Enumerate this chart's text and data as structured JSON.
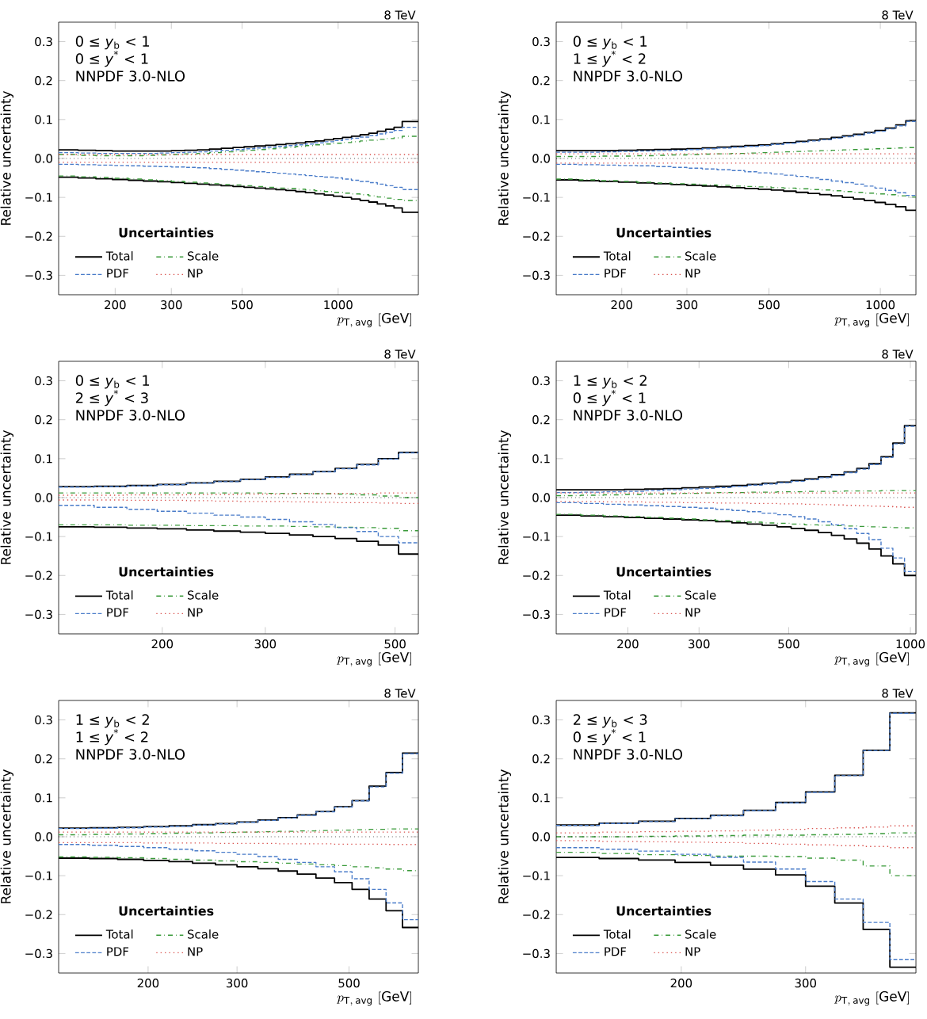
{
  "chart_data": [
    {
      "type": "step",
      "subtitle": "8 TeV",
      "xlabel": "p_{\\mathrm{T,\\,avg}}\\ \\mathrm{[GeV]}",
      "ylabel": "Relative uncertainty",
      "legend_title": "Uncertainties",
      "legend": "bottom left",
      "log": "x",
      "annotations": [
        "0 ≤ *y*$_{b}$ < 1",
        "0 ≤ *y*$^{*}$ < 1",
        "NNPDF 3.0-NLO"
      ],
      "x": [
        133,
        153,
        174,
        196,
        220,
        245,
        272,
        300,
        330,
        362,
        395,
        430,
        468,
        507,
        548,
        592,
        638,
        686,
        737,
        790,
        846,
        905,
        967,
        1032,
        1101,
        1172,
        1248,
        1327,
        1410,
        1497,
        1588,
        1784
      ],
      "xlim": [
        133,
        1784
      ],
      "xticks": [
        200,
        300,
        500,
        1000
      ],
      "ylim": [
        -0.35,
        0.35
      ],
      "yticks": [
        {
          "value": -0.3,
          "label": "−0.3"
        },
        {
          "value": -0.2,
          "label": "−0.2"
        },
        {
          "value": -0.1,
          "label": "−0.1"
        },
        {
          "value": 0,
          "label": "0.0"
        },
        0.1,
        0.2,
        0.3
      ],
      "ref_lines": [
        {
          "axis": "y",
          "value": 0,
          "color": "#000000",
          "line_style": "dotted"
        }
      ],
      "series": [
        {
          "name": "Total",
          "color": "#000000",
          "line_style": "solid",
          "values": [
            0.022,
            0.021,
            0.02,
            0.019,
            0.019,
            0.019,
            0.019,
            0.02,
            0.021,
            0.022,
            0.024,
            0.026,
            0.028,
            0.03,
            0.032,
            0.034,
            0.036,
            0.038,
            0.04,
            0.043,
            0.045,
            0.048,
            0.051,
            0.054,
            0.057,
            0.061,
            0.065,
            0.07,
            0.075,
            0.08,
            0.095,
            0.095
          ]
        },
        {
          "color": "#000000",
          "line_style": "solid",
          "values": [
            -0.048,
            -0.05,
            -0.052,
            -0.054,
            -0.056,
            -0.058,
            -0.06,
            -0.062,
            -0.064,
            -0.066,
            -0.068,
            -0.07,
            -0.072,
            -0.074,
            -0.076,
            -0.078,
            -0.08,
            -0.082,
            -0.085,
            -0.088,
            -0.091,
            -0.094,
            -0.097,
            -0.1,
            -0.104,
            -0.108,
            -0.112,
            -0.117,
            -0.122,
            -0.127,
            -0.138,
            -0.138
          ]
        },
        {
          "name": "Scale",
          "color": "#3a9a3a",
          "line_style": "dashdot",
          "values": [
            0.01,
            0.008,
            0.007,
            0.007,
            0.007,
            0.008,
            0.009,
            0.01,
            0.012,
            0.013,
            0.015,
            0.017,
            0.019,
            0.021,
            0.023,
            0.025,
            0.027,
            0.029,
            0.031,
            0.033,
            0.035,
            0.037,
            0.039,
            0.041,
            0.043,
            0.045,
            0.047,
            0.049,
            0.051,
            0.053,
            0.057,
            0.057
          ]
        },
        {
          "color": "#3a9a3a",
          "line_style": "dashdot",
          "values": [
            -0.045,
            -0.047,
            -0.049,
            -0.051,
            -0.053,
            -0.055,
            -0.057,
            -0.059,
            -0.061,
            -0.063,
            -0.065,
            -0.067,
            -0.068,
            -0.07,
            -0.072,
            -0.074,
            -0.076,
            -0.077,
            -0.079,
            -0.081,
            -0.083,
            -0.085,
            -0.087,
            -0.089,
            -0.091,
            -0.093,
            -0.096,
            -0.099,
            -0.102,
            -0.105,
            -0.108,
            -0.108
          ]
        },
        {
          "name": "PDF",
          "color": "#4a7cc9",
          "line_style": "dashed",
          "values": [
            0.015,
            0.014,
            0.013,
            0.013,
            0.013,
            0.013,
            0.014,
            0.015,
            0.016,
            0.017,
            0.019,
            0.021,
            0.023,
            0.025,
            0.027,
            0.029,
            0.031,
            0.033,
            0.035,
            0.037,
            0.04,
            0.043,
            0.046,
            0.049,
            0.052,
            0.055,
            0.059,
            0.063,
            0.067,
            0.072,
            0.08,
            0.08
          ]
        },
        {
          "color": "#4a7cc9",
          "line_style": "dashed",
          "values": [
            -0.015,
            -0.016,
            -0.017,
            -0.018,
            -0.019,
            -0.02,
            -0.021,
            -0.022,
            -0.023,
            -0.024,
            -0.026,
            -0.028,
            -0.03,
            -0.032,
            -0.034,
            -0.036,
            -0.038,
            -0.04,
            -0.042,
            -0.044,
            -0.046,
            -0.048,
            -0.05,
            -0.053,
            -0.056,
            -0.059,
            -0.062,
            -0.066,
            -0.07,
            -0.074,
            -0.08,
            -0.08
          ]
        },
        {
          "name": "NP",
          "color": "#d9534f",
          "line_style": "dotted",
          "values": [
            0.01,
            0.01,
            0.01,
            0.01,
            0.01,
            0.01,
            0.01,
            0.01,
            0.01,
            0.01,
            0.01,
            0.01,
            0.01,
            0.01,
            0.01,
            0.01,
            0.01,
            0.01,
            0.01,
            0.01,
            0.01,
            0.01,
            0.01,
            0.01,
            0.01,
            0.01,
            0.01,
            0.01,
            0.01,
            0.01,
            0.01,
            0.01
          ]
        },
        {
          "color": "#d9534f",
          "line_style": "dotted",
          "values": [
            -0.01,
            -0.01,
            -0.01,
            -0.01,
            -0.01,
            -0.01,
            -0.01,
            -0.01,
            -0.01,
            -0.01,
            -0.01,
            -0.01,
            -0.01,
            -0.01,
            -0.01,
            -0.01,
            -0.01,
            -0.01,
            -0.01,
            -0.01,
            -0.01,
            -0.01,
            -0.01,
            -0.01,
            -0.01,
            -0.01,
            -0.01,
            -0.01,
            -0.01,
            -0.01,
            -0.01,
            -0.01
          ]
        }
      ]
    },
    {
      "type": "step",
      "subtitle": "8 TeV",
      "xlabel": "p_{\\mathrm{T,\\,avg}}\\ \\mathrm{[GeV]}",
      "ylabel": "Relative uncertainty",
      "legend_title": "Uncertainties",
      "legend": "bottom left",
      "log": "x",
      "annotations": [
        "0 ≤ *y*$_{b}$ < 1",
        "1 ≤ *y*$^{*}$ < 2",
        "NNPDF 3.0-NLO"
      ],
      "x": [
        133,
        153,
        174,
        196,
        220,
        245,
        272,
        300,
        330,
        362,
        395,
        430,
        468,
        507,
        548,
        592,
        638,
        686,
        737,
        790,
        846,
        905,
        967,
        1032,
        1101,
        1172,
        1248
      ],
      "xlim": [
        133,
        1248
      ],
      "xticks": [
        200,
        300,
        500,
        1000
      ],
      "ylim": [
        -0.35,
        0.35
      ],
      "yticks": [
        {
          "value": -0.3,
          "label": "−0.3"
        },
        {
          "value": -0.2,
          "label": "−0.2"
        },
        {
          "value": -0.1,
          "label": "−0.1"
        },
        {
          "value": 0,
          "label": "0.0"
        },
        0.1,
        0.2,
        0.3
      ],
      "ref_lines": [
        {
          "axis": "y",
          "value": 0,
          "color": "#000000",
          "line_style": "dotted"
        }
      ],
      "series": [
        {
          "name": "Total",
          "color": "#000000",
          "line_style": "solid",
          "values": [
            0.02,
            0.02,
            0.02,
            0.021,
            0.022,
            0.023,
            0.024,
            0.025,
            0.027,
            0.029,
            0.031,
            0.033,
            0.035,
            0.038,
            0.041,
            0.044,
            0.047,
            0.05,
            0.054,
            0.058,
            0.062,
            0.067,
            0.072,
            0.078,
            0.086,
            0.097,
            0.097
          ]
        },
        {
          "color": "#000000",
          "line_style": "solid",
          "values": [
            -0.055,
            -0.057,
            -0.059,
            -0.061,
            -0.063,
            -0.065,
            -0.067,
            -0.069,
            -0.071,
            -0.073,
            -0.075,
            -0.077,
            -0.079,
            -0.081,
            -0.084,
            -0.087,
            -0.09,
            -0.093,
            -0.096,
            -0.1,
            -0.104,
            -0.108,
            -0.113,
            -0.118,
            -0.124,
            -0.133,
            -0.133
          ]
        },
        {
          "name": "Scale",
          "color": "#3a9a3a",
          "line_style": "dashdot",
          "values": [
            0.005,
            0.005,
            0.006,
            0.006,
            0.007,
            0.008,
            0.009,
            0.01,
            0.011,
            0.012,
            0.013,
            0.014,
            0.015,
            0.016,
            0.017,
            0.018,
            0.019,
            0.02,
            0.021,
            0.022,
            0.023,
            0.024,
            0.025,
            0.026,
            0.027,
            0.028,
            0.028
          ]
        },
        {
          "color": "#3a9a3a",
          "line_style": "dashdot",
          "values": [
            -0.053,
            -0.055,
            -0.057,
            -0.059,
            -0.061,
            -0.063,
            -0.065,
            -0.066,
            -0.068,
            -0.069,
            -0.071,
            -0.072,
            -0.073,
            -0.075,
            -0.076,
            -0.078,
            -0.08,
            -0.081,
            -0.083,
            -0.085,
            -0.087,
            -0.089,
            -0.091,
            -0.093,
            -0.096,
            -0.099,
            -0.099
          ]
        },
        {
          "name": "PDF",
          "color": "#4a7cc9",
          "line_style": "dashed",
          "values": [
            0.016,
            0.016,
            0.017,
            0.018,
            0.019,
            0.02,
            0.021,
            0.023,
            0.025,
            0.027,
            0.029,
            0.031,
            0.033,
            0.036,
            0.039,
            0.042,
            0.045,
            0.048,
            0.052,
            0.056,
            0.06,
            0.065,
            0.07,
            0.076,
            0.084,
            0.095,
            0.095
          ]
        },
        {
          "color": "#4a7cc9",
          "line_style": "dashed",
          "values": [
            -0.015,
            -0.016,
            -0.017,
            -0.018,
            -0.019,
            -0.021,
            -0.023,
            -0.025,
            -0.027,
            -0.029,
            -0.031,
            -0.034,
            -0.037,
            -0.04,
            -0.043,
            -0.046,
            -0.05,
            -0.054,
            -0.058,
            -0.062,
            -0.066,
            -0.071,
            -0.076,
            -0.082,
            -0.088,
            -0.095,
            -0.095
          ]
        },
        {
          "name": "NP",
          "color": "#d9534f",
          "line_style": "dotted",
          "values": [
            0.012,
            0.012,
            0.012,
            0.012,
            0.012,
            0.012,
            0.012,
            0.012,
            0.012,
            0.012,
            0.012,
            0.012,
            0.012,
            0.012,
            0.012,
            0.012,
            0.012,
            0.012,
            0.012,
            0.012,
            0.012,
            0.012,
            0.012,
            0.012,
            0.012,
            0.012,
            0.012
          ]
        },
        {
          "color": "#d9534f",
          "line_style": "dotted",
          "values": [
            -0.012,
            -0.012,
            -0.012,
            -0.012,
            -0.012,
            -0.012,
            -0.012,
            -0.012,
            -0.012,
            -0.012,
            -0.012,
            -0.012,
            -0.012,
            -0.012,
            -0.012,
            -0.012,
            -0.012,
            -0.012,
            -0.012,
            -0.012,
            -0.012,
            -0.012,
            -0.012,
            -0.012,
            -0.012,
            -0.012,
            -0.012
          ]
        }
      ]
    },
    {
      "type": "step",
      "subtitle": "8 TeV",
      "xlabel": "p_{\\mathrm{T,\\,avg}}\\ \\mathrm{[GeV]}",
      "ylabel": "Relative uncertainty",
      "legend_title": "Uncertainties",
      "legend": "bottom left",
      "log": "x",
      "annotations": [
        "0 ≤ *y*$_{b}$ < 1",
        "2 ≤ *y*$^{*}$ < 3",
        "NNPDF 3.0-NLO"
      ],
      "x": [
        133,
        153,
        174,
        196,
        220,
        245,
        272,
        300,
        330,
        362,
        395,
        430,
        468,
        507,
        548
      ],
      "xlim": [
        133,
        548
      ],
      "xticks": [
        200,
        300,
        500
      ],
      "ylim": [
        -0.35,
        0.35
      ],
      "yticks": [
        {
          "value": -0.3,
          "label": "−0.3"
        },
        {
          "value": -0.2,
          "label": "−0.2"
        },
        {
          "value": -0.1,
          "label": "−0.1"
        },
        {
          "value": 0,
          "label": "0.0"
        },
        0.1,
        0.2,
        0.3
      ],
      "ref_lines": [
        {
          "axis": "y",
          "value": 0,
          "color": "#000000",
          "line_style": "dotted"
        }
      ],
      "series": [
        {
          "name": "Total",
          "color": "#000000",
          "line_style": "solid",
          "values": [
            0.028,
            0.029,
            0.031,
            0.034,
            0.038,
            0.042,
            0.047,
            0.053,
            0.06,
            0.067,
            0.075,
            0.085,
            0.1,
            0.116,
            0.116
          ]
        },
        {
          "color": "#000000",
          "line_style": "solid",
          "values": [
            -0.075,
            -0.076,
            -0.078,
            -0.08,
            -0.083,
            -0.086,
            -0.089,
            -0.092,
            -0.096,
            -0.1,
            -0.105,
            -0.112,
            -0.122,
            -0.145,
            -0.145
          ]
        },
        {
          "name": "Scale",
          "color": "#3a9a3a",
          "line_style": "dashdot",
          "values": [
            0.012,
            0.012,
            0.012,
            0.012,
            0.012,
            0.012,
            0.012,
            0.011,
            0.011,
            0.01,
            0.009,
            0.007,
            0.004,
            0.0,
            0.0
          ]
        },
        {
          "color": "#3a9a3a",
          "line_style": "dashdot",
          "values": [
            -0.07,
            -0.07,
            -0.071,
            -0.071,
            -0.072,
            -0.072,
            -0.073,
            -0.073,
            -0.074,
            -0.075,
            -0.076,
            -0.077,
            -0.079,
            -0.085,
            -0.085
          ]
        },
        {
          "name": "PDF",
          "color": "#4a7cc9",
          "line_style": "dashed",
          "values": [
            0.027,
            0.028,
            0.03,
            0.033,
            0.037,
            0.041,
            0.046,
            0.052,
            0.059,
            0.066,
            0.074,
            0.084,
            0.099,
            0.115,
            0.115
          ]
        },
        {
          "color": "#4a7cc9",
          "line_style": "dashed",
          "values": [
            -0.02,
            -0.025,
            -0.03,
            -0.035,
            -0.04,
            -0.045,
            -0.05,
            -0.056,
            -0.062,
            -0.069,
            -0.077,
            -0.087,
            -0.1,
            -0.116,
            -0.116
          ]
        },
        {
          "name": "NP",
          "color": "#d9534f",
          "line_style": "dotted",
          "values": [
            0.006,
            0.006,
            0.007,
            0.007,
            0.008,
            0.008,
            0.009,
            0.009,
            0.01,
            0.01,
            0.011,
            0.011,
            0.012,
            0.012,
            0.012
          ]
        },
        {
          "color": "#d9534f",
          "line_style": "dotted",
          "values": [
            -0.006,
            -0.006,
            -0.007,
            -0.007,
            -0.008,
            -0.009,
            -0.01,
            -0.01,
            -0.011,
            -0.012,
            -0.013,
            -0.013,
            -0.014,
            -0.015,
            -0.015
          ]
        }
      ]
    },
    {
      "type": "step",
      "subtitle": "8 TeV",
      "xlabel": "p_{\\mathrm{T,\\,avg}}\\ \\mathrm{[GeV]}",
      "ylabel": "Relative uncertainty",
      "legend_title": "Uncertainties",
      "legend": "bottom left",
      "log": "x",
      "annotations": [
        "1 ≤ *y*$_{b}$ < 2",
        "0 ≤ *y*$^{*}$ < 1",
        "NNPDF 3.0-NLO"
      ],
      "x": [
        133,
        153,
        174,
        196,
        220,
        245,
        272,
        300,
        330,
        362,
        395,
        430,
        468,
        507,
        548,
        592,
        638,
        686,
        737,
        790,
        846,
        905,
        967,
        1032
      ],
      "xlim": [
        133,
        1032
      ],
      "xticks": [
        200,
        300,
        500,
        1000
      ],
      "ylim": [
        -0.35,
        0.35
      ],
      "yticks": [
        {
          "value": -0.3,
          "label": "−0.3"
        },
        {
          "value": -0.2,
          "label": "−0.2"
        },
        {
          "value": -0.1,
          "label": "−0.1"
        },
        {
          "value": 0,
          "label": "0.0"
        },
        0.1,
        0.2,
        0.3
      ],
      "ref_lines": [
        {
          "axis": "y",
          "value": 0,
          "color": "#000000",
          "line_style": "dotted"
        }
      ],
      "series": [
        {
          "name": "Total",
          "color": "#000000",
          "line_style": "solid",
          "values": [
            0.02,
            0.02,
            0.02,
            0.021,
            0.022,
            0.023,
            0.025,
            0.027,
            0.029,
            0.031,
            0.034,
            0.037,
            0.04,
            0.044,
            0.048,
            0.053,
            0.059,
            0.066,
            0.075,
            0.087,
            0.105,
            0.14,
            0.185,
            0.185
          ]
        },
        {
          "color": "#000000",
          "line_style": "solid",
          "values": [
            -0.045,
            -0.047,
            -0.049,
            -0.051,
            -0.053,
            -0.055,
            -0.057,
            -0.059,
            -0.062,
            -0.065,
            -0.068,
            -0.071,
            -0.075,
            -0.079,
            -0.084,
            -0.09,
            -0.097,
            -0.106,
            -0.117,
            -0.132,
            -0.15,
            -0.17,
            -0.2,
            -0.2
          ]
        },
        {
          "name": "Scale",
          "color": "#3a9a3a",
          "line_style": "dashdot",
          "values": [
            0.005,
            0.006,
            0.007,
            0.008,
            0.009,
            0.01,
            0.011,
            0.012,
            0.013,
            0.013,
            0.014,
            0.014,
            0.015,
            0.015,
            0.016,
            0.016,
            0.016,
            0.017,
            0.017,
            0.017,
            0.018,
            0.018,
            0.018,
            0.018
          ]
        },
        {
          "color": "#3a9a3a",
          "line_style": "dashdot",
          "values": [
            -0.043,
            -0.045,
            -0.047,
            -0.049,
            -0.051,
            -0.053,
            -0.055,
            -0.057,
            -0.059,
            -0.061,
            -0.063,
            -0.065,
            -0.066,
            -0.068,
            -0.07,
            -0.071,
            -0.072,
            -0.073,
            -0.074,
            -0.075,
            -0.076,
            -0.077,
            -0.078,
            -0.078
          ]
        },
        {
          "name": "PDF",
          "color": "#4a7cc9",
          "line_style": "dashed",
          "values": [
            0.013,
            0.014,
            0.015,
            0.016,
            0.018,
            0.02,
            0.022,
            0.024,
            0.026,
            0.029,
            0.032,
            0.035,
            0.038,
            0.042,
            0.046,
            0.051,
            0.057,
            0.064,
            0.073,
            0.085,
            0.103,
            0.138,
            0.183,
            0.183
          ]
        },
        {
          "color": "#4a7cc9",
          "line_style": "dashed",
          "values": [
            -0.013,
            -0.015,
            -0.017,
            -0.019,
            -0.021,
            -0.023,
            -0.025,
            -0.027,
            -0.03,
            -0.033,
            -0.036,
            -0.04,
            -0.044,
            -0.049,
            -0.055,
            -0.062,
            -0.07,
            -0.08,
            -0.092,
            -0.108,
            -0.13,
            -0.155,
            -0.19,
            -0.19
          ]
        },
        {
          "name": "NP",
          "color": "#d9534f",
          "line_style": "dotted",
          "values": [
            0.012,
            0.012,
            0.012,
            0.012,
            0.012,
            0.012,
            0.012,
            0.012,
            0.012,
            0.012,
            0.012,
            0.012,
            0.012,
            0.012,
            0.012,
            0.012,
            0.012,
            0.012,
            0.012,
            0.012,
            0.012,
            0.012,
            0.012,
            0.012
          ]
        },
        {
          "color": "#d9534f",
          "line_style": "dotted",
          "values": [
            -0.01,
            -0.01,
            -0.011,
            -0.011,
            -0.012,
            -0.012,
            -0.013,
            -0.013,
            -0.014,
            -0.014,
            -0.015,
            -0.015,
            -0.016,
            -0.016,
            -0.017,
            -0.018,
            -0.019,
            -0.02,
            -0.021,
            -0.022,
            -0.023,
            -0.024,
            -0.025,
            -0.025
          ]
        }
      ]
    },
    {
      "type": "step",
      "subtitle": "8 TeV",
      "xlabel": "p_{\\mathrm{T,\\,avg}}\\ \\mathrm{[GeV]}",
      "ylabel": "Relative uncertainty",
      "legend_title": "Uncertainties",
      "legend": "bottom left",
      "log": "x",
      "annotations": [
        "1 ≤ *y*$_{b}$ < 2",
        "1 ≤ *y*$^{*}$ < 2",
        "NNPDF 3.0-NLO"
      ],
      "x": [
        133,
        153,
        174,
        196,
        220,
        245,
        272,
        300,
        330,
        362,
        395,
        430,
        468,
        507,
        548,
        592,
        638,
        686
      ],
      "xlim": [
        133,
        686
      ],
      "xticks": [
        200,
        300,
        500
      ],
      "ylim": [
        -0.35,
        0.35
      ],
      "yticks": [
        {
          "value": -0.3,
          "label": "−0.3"
        },
        {
          "value": -0.2,
          "label": "−0.2"
        },
        {
          "value": -0.1,
          "label": "−0.1"
        },
        {
          "value": 0,
          "label": "0.0"
        },
        0.1,
        0.2,
        0.3
      ],
      "ref_lines": [
        {
          "axis": "y",
          "value": 0,
          "color": "#000000",
          "line_style": "dotted"
        }
      ],
      "series": [
        {
          "name": "Total",
          "color": "#000000",
          "line_style": "solid",
          "values": [
            0.022,
            0.023,
            0.024,
            0.026,
            0.028,
            0.031,
            0.034,
            0.038,
            0.043,
            0.049,
            0.056,
            0.065,
            0.077,
            0.093,
            0.13,
            0.165,
            0.215,
            0.215
          ]
        },
        {
          "color": "#000000",
          "line_style": "solid",
          "values": [
            -0.055,
            -0.056,
            -0.058,
            -0.061,
            -0.064,
            -0.068,
            -0.072,
            -0.077,
            -0.082,
            -0.088,
            -0.096,
            -0.106,
            -0.118,
            -0.135,
            -0.16,
            -0.19,
            -0.233,
            -0.233
          ]
        },
        {
          "name": "Scale",
          "color": "#3a9a3a",
          "line_style": "dashdot",
          "values": [
            0.005,
            0.006,
            0.007,
            0.008,
            0.009,
            0.01,
            0.011,
            0.012,
            0.013,
            0.014,
            0.015,
            0.016,
            0.017,
            0.018,
            0.019,
            0.02,
            0.02,
            0.02
          ]
        },
        {
          "color": "#3a9a3a",
          "line_style": "dashdot",
          "values": [
            -0.052,
            -0.053,
            -0.054,
            -0.056,
            -0.058,
            -0.06,
            -0.062,
            -0.064,
            -0.066,
            -0.068,
            -0.07,
            -0.072,
            -0.074,
            -0.077,
            -0.08,
            -0.083,
            -0.087,
            -0.087
          ]
        },
        {
          "name": "PDF",
          "color": "#4a7cc9",
          "line_style": "dashed",
          "values": [
            0.021,
            0.022,
            0.023,
            0.025,
            0.027,
            0.03,
            0.033,
            0.037,
            0.042,
            0.048,
            0.055,
            0.064,
            0.076,
            0.092,
            0.128,
            0.163,
            0.213,
            0.213
          ]
        },
        {
          "color": "#4a7cc9",
          "line_style": "dashed",
          "values": [
            -0.02,
            -0.022,
            -0.025,
            -0.028,
            -0.032,
            -0.036,
            -0.04,
            -0.045,
            -0.051,
            -0.058,
            -0.066,
            -0.077,
            -0.09,
            -0.108,
            -0.135,
            -0.17,
            -0.213,
            -0.213
          ]
        },
        {
          "name": "NP",
          "color": "#d9534f",
          "line_style": "dotted",
          "values": [
            0.012,
            0.012,
            0.012,
            0.012,
            0.012,
            0.012,
            0.012,
            0.012,
            0.012,
            0.012,
            0.012,
            0.012,
            0.012,
            0.012,
            0.012,
            0.012,
            0.012,
            0.012
          ]
        },
        {
          "color": "#d9534f",
          "line_style": "dotted",
          "values": [
            -0.015,
            -0.015,
            -0.015,
            -0.016,
            -0.016,
            -0.016,
            -0.017,
            -0.017,
            -0.017,
            -0.018,
            -0.018,
            -0.018,
            -0.019,
            -0.019,
            -0.019,
            -0.02,
            -0.02,
            -0.02
          ]
        }
      ]
    },
    {
      "type": "step",
      "subtitle": "8 TeV",
      "xlabel": "p_{\\mathrm{T,\\,avg}}\\ \\mathrm{[GeV]}",
      "ylabel": "Relative uncertainty",
      "legend_title": "Uncertainties",
      "legend": "bottom left",
      "log": "x",
      "annotations": [
        "2 ≤ *y*$_{b}$ < 3",
        "0 ≤ *y*$^{*}$ < 1",
        "NNPDF 3.0-NLO"
      ],
      "x": [
        133,
        153,
        174,
        196,
        220,
        245,
        272,
        300,
        330,
        362,
        395,
        430
      ],
      "xlim": [
        133,
        430
      ],
      "xticks": [
        200,
        300
      ],
      "ylim": [
        -0.35,
        0.35
      ],
      "yticks": [
        {
          "value": -0.3,
          "label": "−0.3"
        },
        {
          "value": -0.2,
          "label": "−0.2"
        },
        {
          "value": -0.1,
          "label": "−0.1"
        },
        {
          "value": 0,
          "label": "0.0"
        },
        0.1,
        0.2,
        0.3
      ],
      "ref_lines": [
        {
          "axis": "y",
          "value": 0,
          "color": "#000000",
          "line_style": "dotted"
        }
      ],
      "series": [
        {
          "name": "Total",
          "color": "#000000",
          "line_style": "solid",
          "values": [
            0.03,
            0.035,
            0.04,
            0.047,
            0.055,
            0.068,
            0.088,
            0.115,
            0.158,
            0.222,
            0.318,
            0.318
          ]
        },
        {
          "color": "#000000",
          "line_style": "solid",
          "values": [
            -0.053,
            -0.056,
            -0.06,
            -0.066,
            -0.073,
            -0.083,
            -0.098,
            -0.127,
            -0.17,
            -0.238,
            -0.335,
            -0.335
          ]
        },
        {
          "name": "Scale",
          "color": "#3a9a3a",
          "line_style": "dashdot",
          "values": [
            0.0,
            0.0,
            0.001,
            0.002,
            0.003,
            0.004,
            0.004,
            0.005,
            0.006,
            0.008,
            0.01,
            0.01
          ]
        },
        {
          "color": "#3a9a3a",
          "line_style": "dashdot",
          "values": [
            -0.04,
            -0.043,
            -0.046,
            -0.048,
            -0.05,
            -0.05,
            -0.051,
            -0.055,
            -0.06,
            -0.075,
            -0.1,
            -0.1
          ]
        },
        {
          "name": "PDF",
          "color": "#4a7cc9",
          "line_style": "dashed",
          "values": [
            0.029,
            0.034,
            0.039,
            0.046,
            0.054,
            0.067,
            0.087,
            0.114,
            0.157,
            0.221,
            0.317,
            0.317
          ]
        },
        {
          "color": "#4a7cc9",
          "line_style": "dashed",
          "values": [
            -0.028,
            -0.032,
            -0.037,
            -0.045,
            -0.053,
            -0.065,
            -0.083,
            -0.115,
            -0.16,
            -0.22,
            -0.315,
            -0.315
          ]
        },
        {
          "name": "NP",
          "color": "#d9534f",
          "line_style": "dotted",
          "values": [
            0.01,
            0.012,
            0.013,
            0.014,
            0.015,
            0.017,
            0.019,
            0.021,
            0.023,
            0.025,
            0.028,
            0.028
          ]
        },
        {
          "color": "#d9534f",
          "line_style": "dotted",
          "values": [
            -0.01,
            -0.012,
            -0.013,
            -0.014,
            -0.015,
            -0.017,
            -0.019,
            -0.021,
            -0.023,
            -0.025,
            -0.028,
            -0.028
          ]
        }
      ]
    }
  ]
}
